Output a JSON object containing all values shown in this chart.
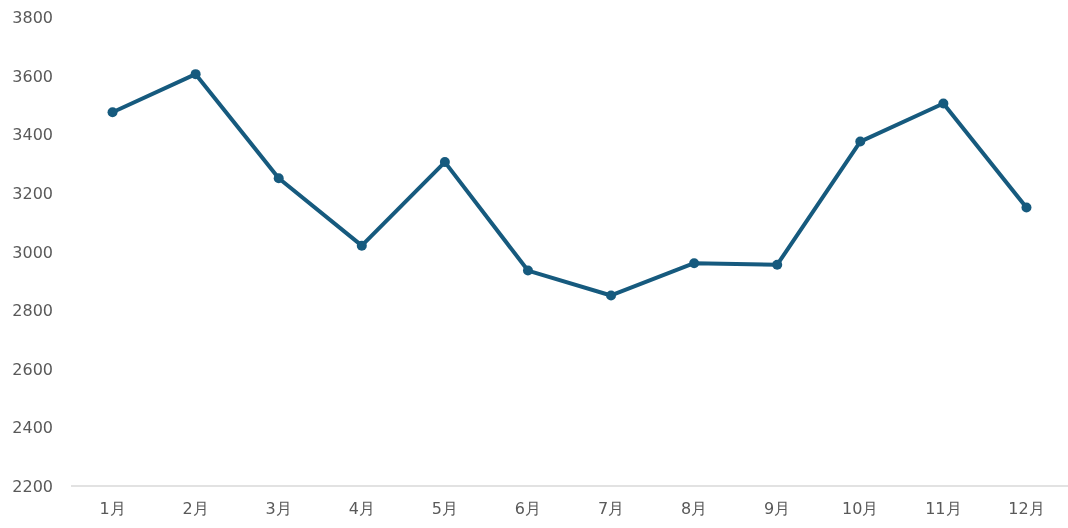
{
  "chart_data": {
    "type": "line",
    "categories": [
      "1月",
      "2月",
      "3月",
      "4月",
      "5月",
      "6月",
      "7月",
      "8月",
      "9月",
      "10月",
      "11月",
      "12月"
    ],
    "series": [
      {
        "color": "#165a7e",
        "values": [
          3475,
          3605,
          3250,
          3020,
          3305,
          2935,
          2850,
          2960,
          2955,
          3375,
          3505,
          3150
        ]
      }
    ],
    "ylim": [
      2200,
      3800
    ],
    "yticks": [
      2200,
      2400,
      2600,
      2800,
      3000,
      3200,
      3400,
      3600,
      3800
    ],
    "grid": false,
    "marker": "circle",
    "line_style": "solid"
  }
}
